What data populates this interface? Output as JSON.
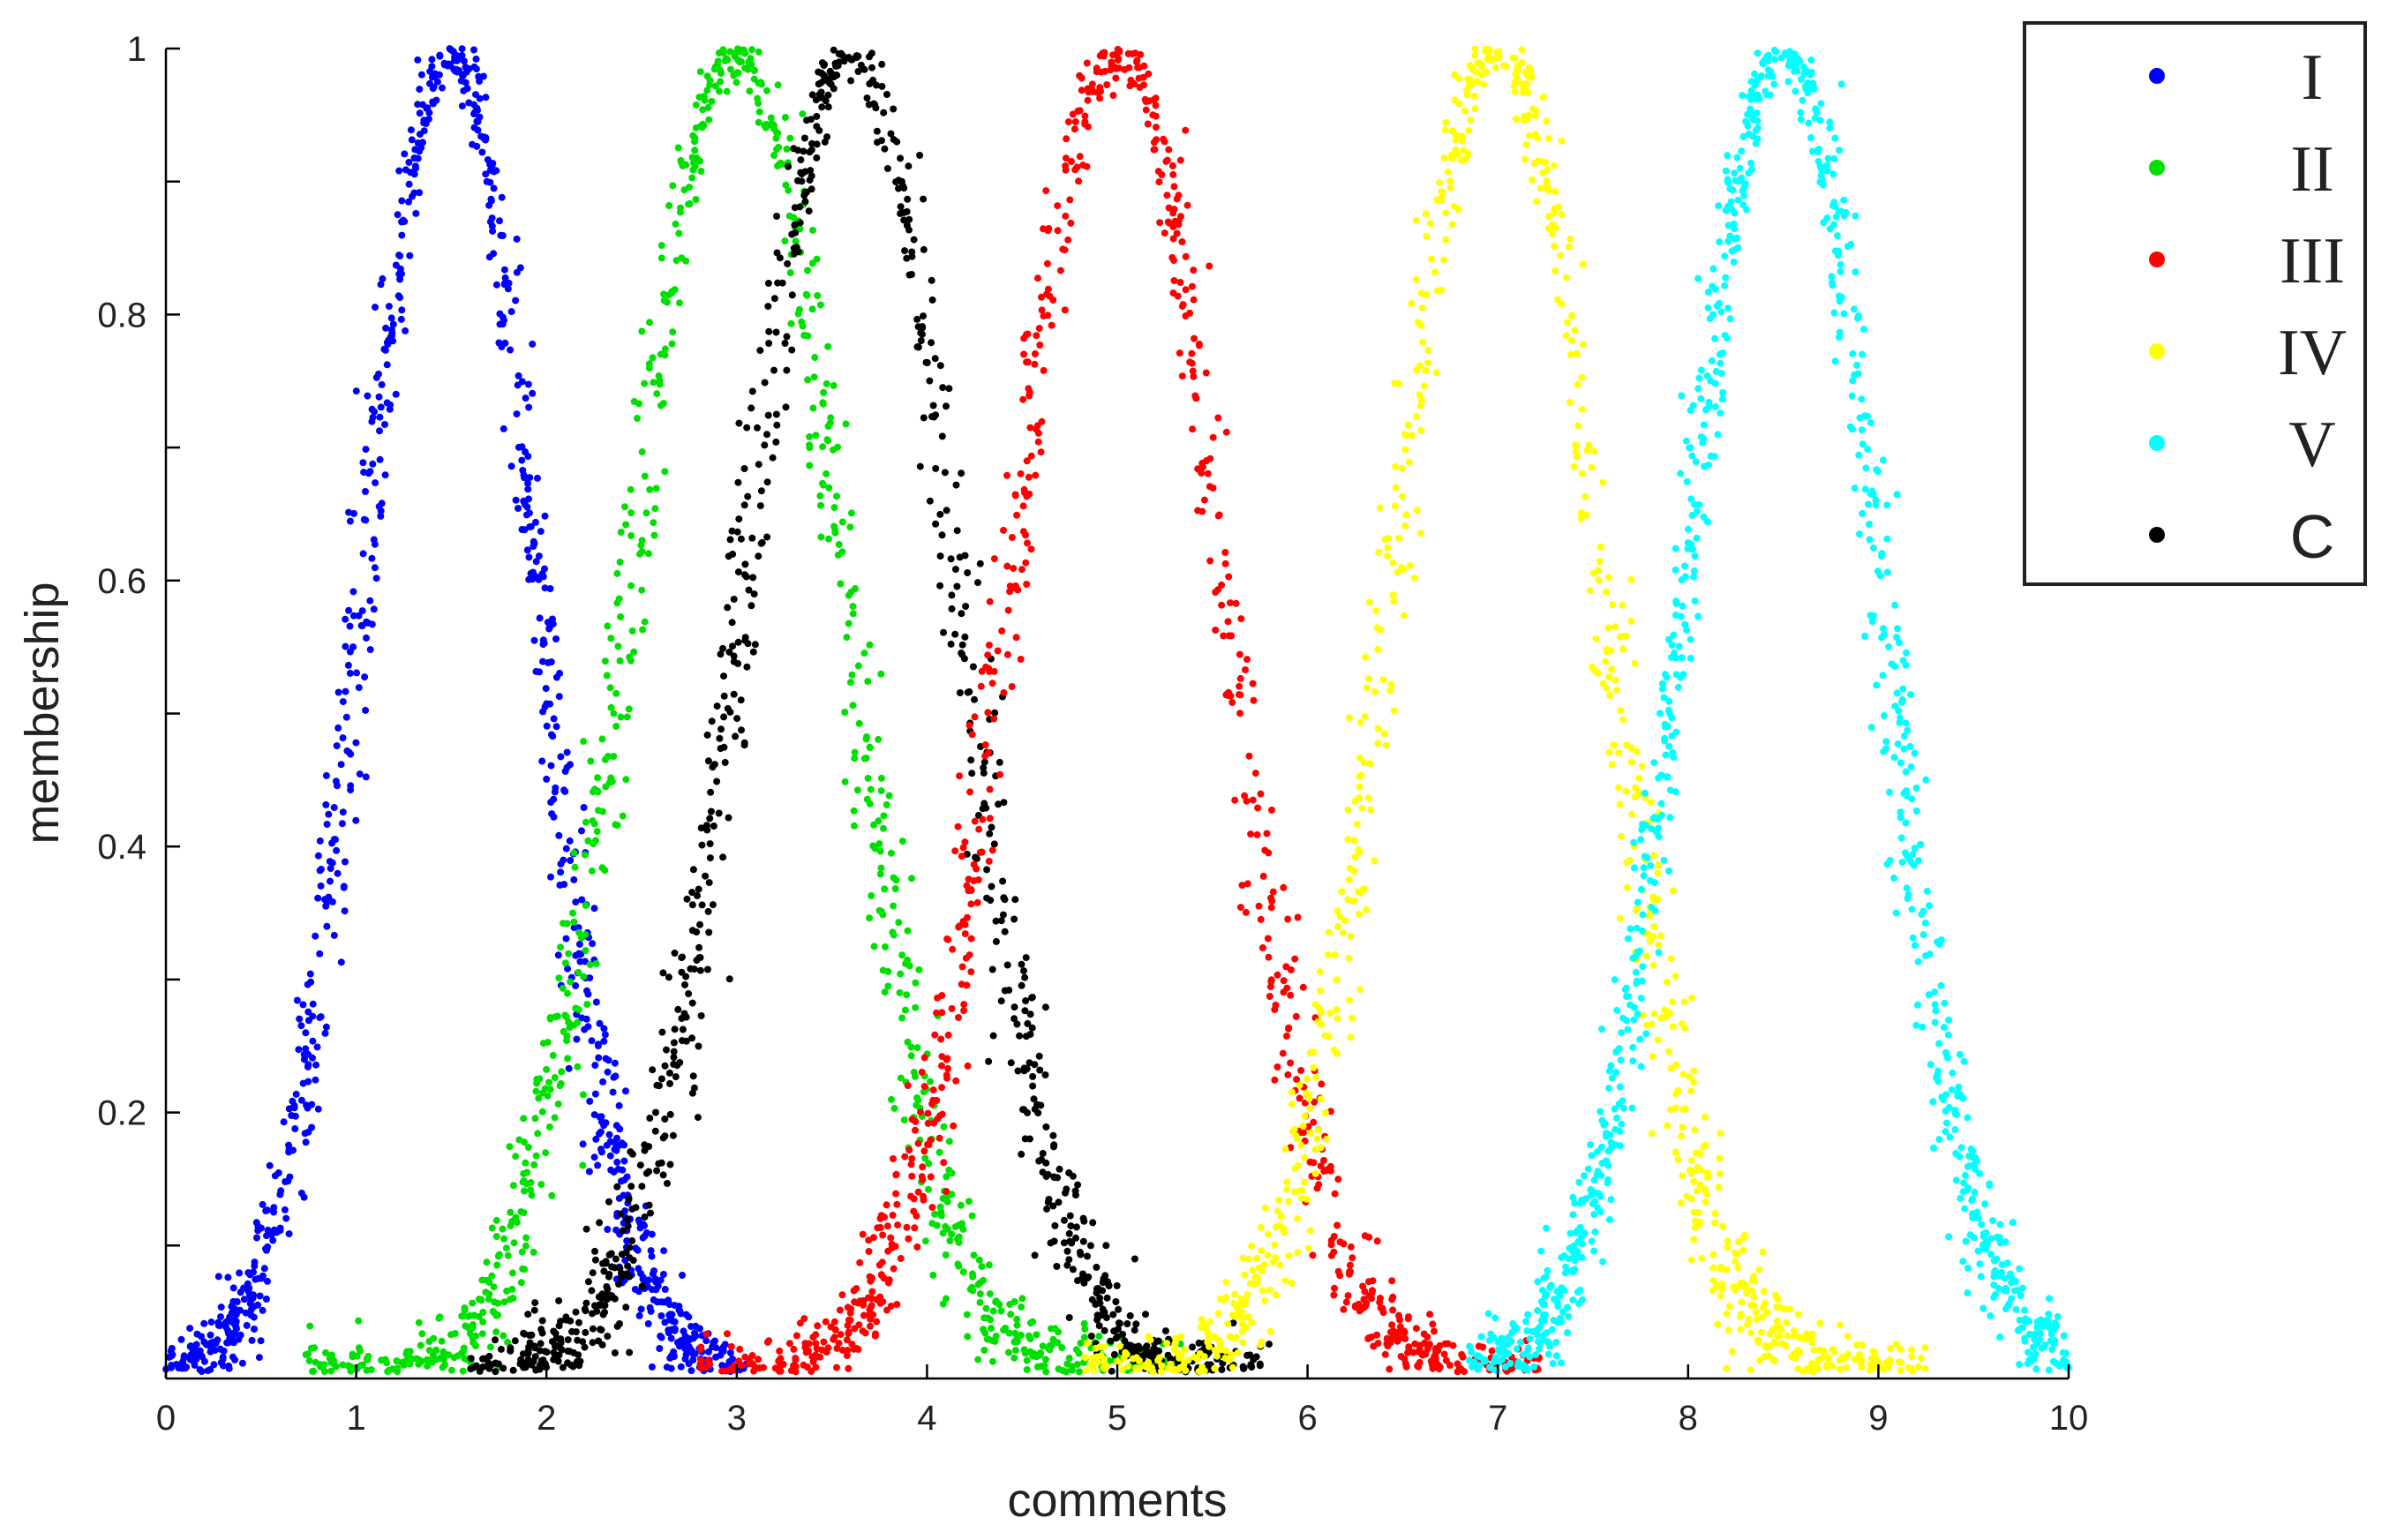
{
  "chart_data": {
    "type": "scatter",
    "title": "",
    "xlabel": "comments",
    "ylabel": "membership",
    "xlim": [
      0,
      10
    ],
    "ylim": [
      0,
      1
    ],
    "x_ticks": [
      "0",
      "1",
      "2",
      "3",
      "4",
      "5",
      "6",
      "7",
      "8",
      "9",
      "10"
    ],
    "y_ticks": [
      "0.2",
      "0.4",
      "0.6",
      "0.8",
      "1"
    ],
    "y_tick_values": [
      0.2,
      0.4,
      0.6,
      0.8,
      1
    ],
    "grid": false,
    "legend_position": "top-right",
    "series": [
      {
        "name": "I",
        "color": "#0000ff",
        "center": 1.5,
        "sigma": 0.45,
        "xrange": [
          0,
          3.1
        ]
      },
      {
        "name": "II",
        "color": "#00e000",
        "center": 3.0,
        "sigma": 0.55,
        "xrange": [
          0.7,
          5.4
        ]
      },
      {
        "name": "III",
        "color": "#ff0000",
        "center": 5.0,
        "sigma": 0.55,
        "xrange": [
          2.8,
          7.3
        ]
      },
      {
        "name": "IV",
        "color": "#ffff00",
        "center": 7.0,
        "sigma": 0.55,
        "xrange": [
          4.8,
          9.3
        ]
      },
      {
        "name": "V",
        "color": "#00ffff",
        "center": 8.5,
        "sigma": 0.5,
        "xrange": [
          6.7,
          10
        ]
      },
      {
        "name": "C",
        "color": "#000000",
        "center": 3.6,
        "sigma": 0.55,
        "xrange": [
          1.6,
          6.0
        ]
      }
    ]
  }
}
